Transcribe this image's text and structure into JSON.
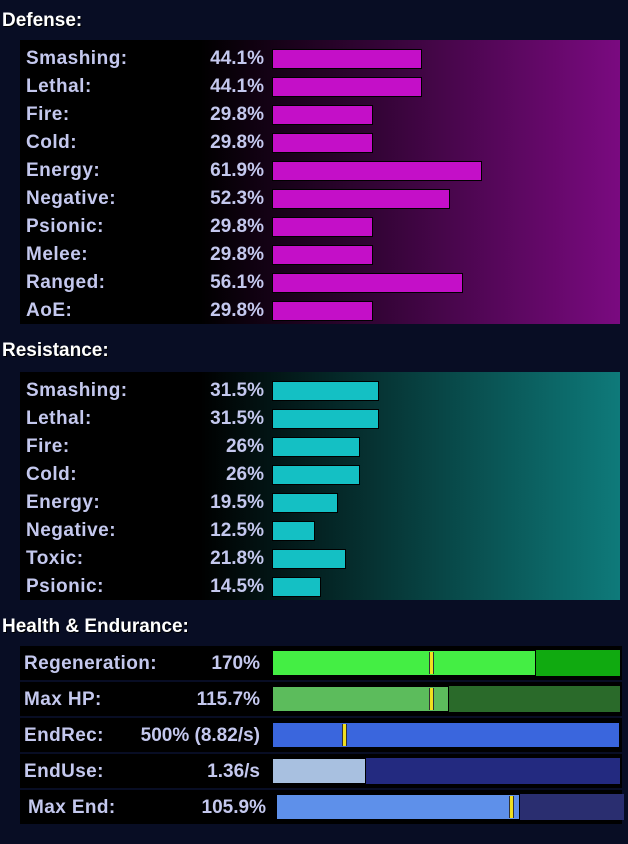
{
  "defense": {
    "title": "Defense:",
    "scale_max": 100,
    "rows": [
      {
        "label": "Smashing:",
        "value": "44.1%",
        "pct": 44.1
      },
      {
        "label": "Lethal:",
        "value": "44.1%",
        "pct": 44.1
      },
      {
        "label": "Fire:",
        "value": "29.8%",
        "pct": 29.8
      },
      {
        "label": "Cold:",
        "value": "29.8%",
        "pct": 29.8
      },
      {
        "label": "Energy:",
        "value": "61.9%",
        "pct": 61.9
      },
      {
        "label": "Negative:",
        "value": "52.3%",
        "pct": 52.3
      },
      {
        "label": "Psionic:",
        "value": "29.8%",
        "pct": 29.8
      },
      {
        "label": "Melee:",
        "value": "29.8%",
        "pct": 29.8
      },
      {
        "label": "Ranged:",
        "value": "56.1%",
        "pct": 56.1
      },
      {
        "label": "AoE:",
        "value": "29.8%",
        "pct": 29.8
      }
    ],
    "colors": {
      "bar": "#c40fc8",
      "panel_end": "#7a0a80"
    }
  },
  "resistance": {
    "title": "Resistance:",
    "scale_max": 100,
    "rows": [
      {
        "label": "Smashing:",
        "value": "31.5%",
        "pct": 31.5
      },
      {
        "label": "Lethal:",
        "value": "31.5%",
        "pct": 31.5
      },
      {
        "label": "Fire:",
        "value": "26%",
        "pct": 26
      },
      {
        "label": "Cold:",
        "value": "26%",
        "pct": 26
      },
      {
        "label": "Energy:",
        "value": "19.5%",
        "pct": 19.5
      },
      {
        "label": "Negative:",
        "value": "12.5%",
        "pct": 12.5
      },
      {
        "label": "Toxic:",
        "value": "21.8%",
        "pct": 21.8
      },
      {
        "label": "Psionic:",
        "value": "14.5%",
        "pct": 14.5
      }
    ],
    "colors": {
      "bar": "#14c0c4",
      "panel_end": "#0e7a7a"
    }
  },
  "health_endurance": {
    "title": "Health & Endurance:",
    "rows": [
      {
        "key": "regeneration",
        "label": "Regeneration:",
        "value": "170%",
        "fill_fraction": 0.76,
        "marker_fraction": 0.45,
        "fill_color": "#44ee44",
        "track_color": "#10aa10"
      },
      {
        "key": "max-hp",
        "label": "Max HP:",
        "value": "115.7%",
        "fill_fraction": 0.51,
        "marker_fraction": 0.45,
        "fill_color": "#5cbc5c",
        "track_color": "#2a6a2a"
      },
      {
        "key": "endrec",
        "label": "EndRec:",
        "value": "500% (8.82/s)",
        "fill_fraction": 1.0,
        "marker_fraction": 0.2,
        "fill_color": "#3a66dd",
        "track_color": "#2a3a9a"
      },
      {
        "key": "enduse",
        "label": "EndUse:",
        "value": "1.36/s",
        "fill_fraction": 0.27,
        "marker_fraction": null,
        "fill_color": "#a8c0e0",
        "track_color": "#232a80"
      },
      {
        "key": "max-end",
        "label": "Max End:",
        "value": "105.9%",
        "fill_fraction": 0.7,
        "marker_fraction": 0.67,
        "fill_color": "#5e90ea",
        "track_color": "#2a2e70"
      }
    ],
    "marker_color": "#f0e020"
  }
}
